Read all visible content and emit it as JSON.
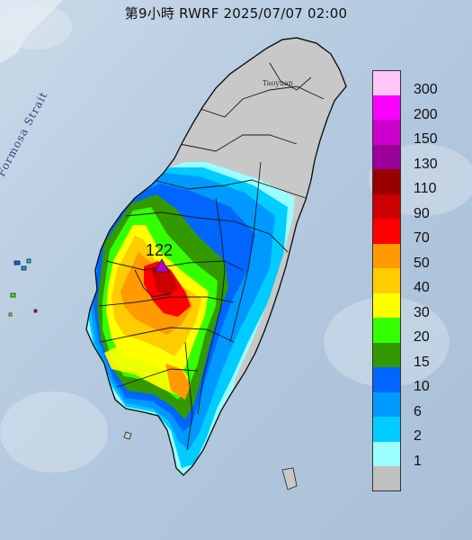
{
  "title": "第9小時  RWRF 2025/07/07 02:00",
  "map_labels": {
    "strait": "Formosa Strait",
    "city": "Taoyuan"
  },
  "station": {
    "value_label": "122",
    "marker_color": "#b400c8"
  },
  "legend": {
    "items": [
      {
        "label": "300",
        "color": "#fdc6f7"
      },
      {
        "label": "200",
        "color": "#fa02fb"
      },
      {
        "label": "150",
        "color": "#cc00cc"
      },
      {
        "label": "130",
        "color": "#9a0099"
      },
      {
        "label": "110",
        "color": "#990000"
      },
      {
        "label": "90",
        "color": "#cc0000"
      },
      {
        "label": "70",
        "color": "#fe0000"
      },
      {
        "label": "50",
        "color": "#ff9a00"
      },
      {
        "label": "40",
        "color": "#ffcc00"
      },
      {
        "label": "30",
        "color": "#ffff00"
      },
      {
        "label": "20",
        "color": "#33ff00"
      },
      {
        "label": "15",
        "color": "#339900"
      },
      {
        "label": "10",
        "color": "#0066ff"
      },
      {
        "label": "6",
        "color": "#0099ff"
      },
      {
        "label": "2",
        "color": "#00ccff"
      },
      {
        "label": "1",
        "color": "#9bfefe"
      },
      {
        "label": "",
        "color": "#c0c0c0"
      }
    ]
  }
}
